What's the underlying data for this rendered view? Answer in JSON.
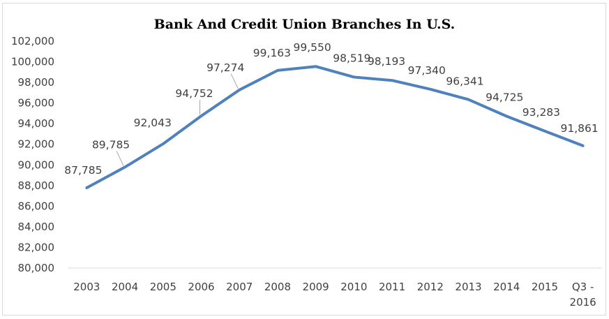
{
  "chart_data": {
    "type": "line",
    "title": "Bank And Credit  Union Branches In U.S.",
    "xlabel": "",
    "ylabel": "",
    "categories": [
      "2003",
      "2004",
      "2005",
      "2006",
      "2007",
      "2008",
      "2009",
      "2010",
      "2011",
      "2012",
      "2013",
      "2014",
      "2015",
      "Q3 - 2016"
    ],
    "series": [
      {
        "values": [
          87785,
          89785,
          92043,
          94752,
          97274,
          99163,
          99550,
          98519,
          98193,
          97340,
          96341,
          94725,
          93283,
          91861
        ],
        "labels": [
          "87,785",
          "89,785",
          "92,043",
          "94,752",
          "97,274",
          "99,163",
          "99,550",
          "98,519",
          "98,193",
          "97,340",
          "96,341",
          "94,725",
          "93,283",
          "91,861"
        ],
        "color": "#4f81bd"
      }
    ],
    "ylim": [
      80000,
      102000
    ],
    "yticks": [
      80000,
      82000,
      84000,
      86000,
      88000,
      90000,
      92000,
      94000,
      96000,
      98000,
      100000,
      102000
    ],
    "ytick_labels": [
      "80,000",
      "82,000",
      "84,000",
      "86,000",
      "88,000",
      "90,000",
      "92,000",
      "94,000",
      "96,000",
      "98,000",
      "100,000",
      "102,000"
    ],
    "grid": false,
    "legend": "none"
  }
}
